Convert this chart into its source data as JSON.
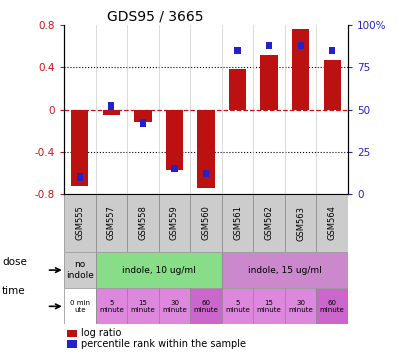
{
  "title": "GDS95 / 3665",
  "samples": [
    "GSM555",
    "GSM557",
    "GSM558",
    "GSM559",
    "GSM560",
    "GSM561",
    "GSM562",
    "GSM563",
    "GSM564"
  ],
  "log_ratio": [
    -0.72,
    -0.05,
    -0.12,
    -0.57,
    -0.74,
    0.38,
    0.52,
    0.76,
    0.47
  ],
  "percentile_raw": [
    10,
    52,
    42,
    15,
    12,
    85,
    88,
    88,
    85
  ],
  "ylim": [
    -0.8,
    0.8
  ],
  "right_ylim": [
    0,
    100
  ],
  "right_yticks": [
    0,
    25,
    50,
    75,
    100
  ],
  "right_yticklabels": [
    "0",
    "25",
    "50",
    "75",
    "100%"
  ],
  "left_yticks": [
    -0.8,
    -0.4,
    0,
    0.4,
    0.8
  ],
  "left_yticklabels": [
    "-0.8",
    "-0.4",
    "0",
    "0.4",
    "0.8"
  ],
  "bar_color": "#bb1111",
  "percentile_color": "#2222cc",
  "zero_line_color": "#cc1111",
  "grid_color": "#000000",
  "dose_groups": [
    {
      "label": "no\nindole",
      "start": 0,
      "end": 1,
      "color": "#cccccc"
    },
    {
      "label": "indole, 10 ug/ml",
      "start": 1,
      "end": 5,
      "color": "#88dd88"
    },
    {
      "label": "indole, 15 ug/ml",
      "start": 5,
      "end": 9,
      "color": "#cc88cc"
    }
  ],
  "time_labels": [
    "0 min\nute",
    "5\nminute",
    "15\nminute",
    "30\nminute",
    "60\nminute",
    "5\nminute",
    "15\nminute",
    "30\nminute",
    "60\nminute"
  ],
  "time_colors": [
    "#ffffff",
    "#dd88dd",
    "#dd88dd",
    "#dd88dd",
    "#cc66cc",
    "#dd88dd",
    "#dd88dd",
    "#dd88dd",
    "#cc66cc"
  ],
  "legend_log_color": "#bb1111",
  "legend_pct_color": "#2222cc",
  "axis_label_color_left": "#cc1111",
  "axis_label_color_right": "#2222cc",
  "sample_box_color": "#cccccc"
}
